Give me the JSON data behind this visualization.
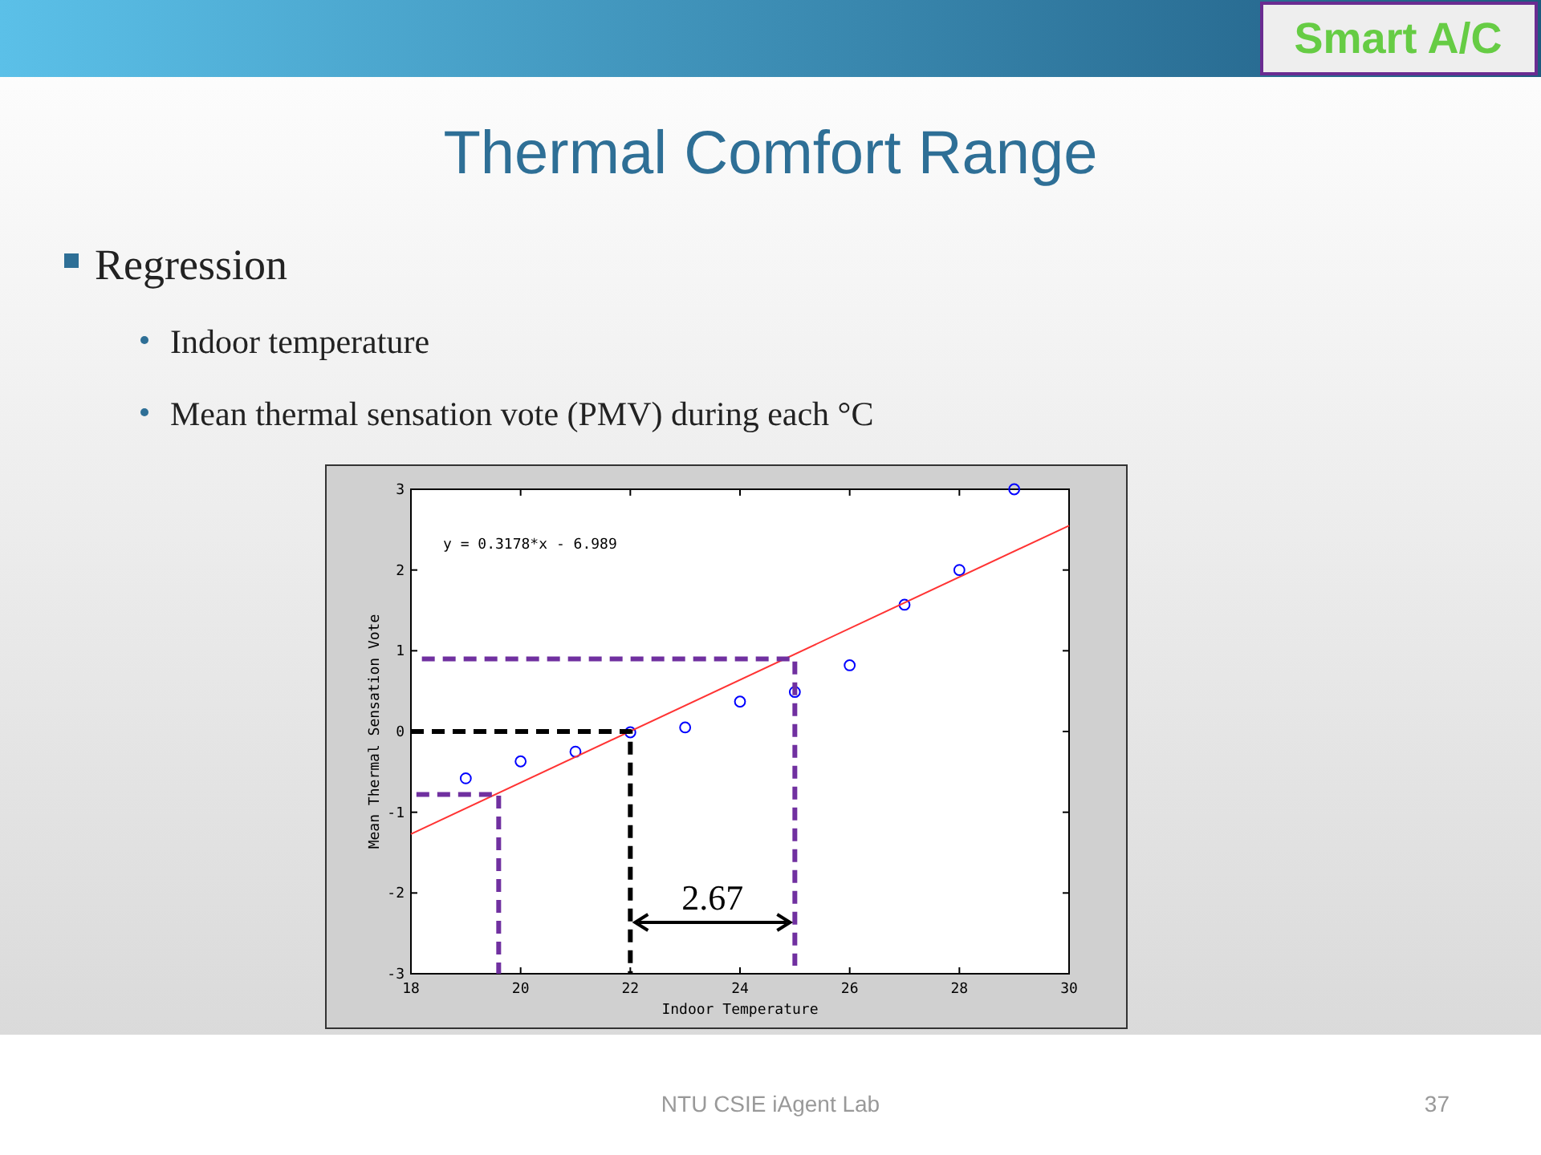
{
  "chart_data": {
    "type": "scatter",
    "title": "Thermal Comfort Range",
    "xlabel": "Indoor Temperature",
    "ylabel": "Mean Thermal Sensation Vote",
    "xlim": [
      18,
      30
    ],
    "xticks": [
      18,
      20,
      22,
      24,
      26,
      28,
      30
    ],
    "ylim": [
      -3,
      3
    ],
    "yticks": [
      -3,
      -2,
      -1,
      0,
      1,
      2,
      3
    ],
    "series": [
      {
        "marker": "circle",
        "color": "#0000ff",
        "x": [
          19,
          20,
          21,
          22,
          23,
          24,
          25,
          26,
          27,
          28,
          29
        ],
        "values": [
          -0.58,
          -0.37,
          -0.25,
          -0.01,
          0.05,
          0.37,
          0.49,
          0.82,
          1.57,
          2.0,
          3.0
        ]
      },
      {
        "type": "line",
        "color": "#ff3333",
        "line_style": "solid",
        "x": [
          18,
          30
        ],
        "values": [
          -1.27,
          2.55
        ]
      },
      {
        "type": "line",
        "color": "#7030a0",
        "line_style": "dashed",
        "x": [
          18.2,
          25,
          25
        ],
        "values": [
          0.9,
          0.9,
          -2.9
        ]
      },
      {
        "type": "line",
        "color": "#000000",
        "line_style": "dashed",
        "x": [
          18,
          22,
          22
        ],
        "values": [
          0,
          0,
          -3
        ]
      },
      {
        "type": "line",
        "color": "#7030a0",
        "line_style": "dashed",
        "x": [
          18.1,
          19.6,
          19.6
        ],
        "values": [
          -0.78,
          -0.78,
          -3
        ]
      }
    ],
    "annotations": [
      "Smart A/C",
      "Regression",
      "Indoor temperature",
      "Mean thermal sensation vote (PMV) during each °C",
      "y = 0.3178*x - 6.989",
      "2.67",
      "NTU CSIE iAgent Lab",
      "37"
    ]
  }
}
